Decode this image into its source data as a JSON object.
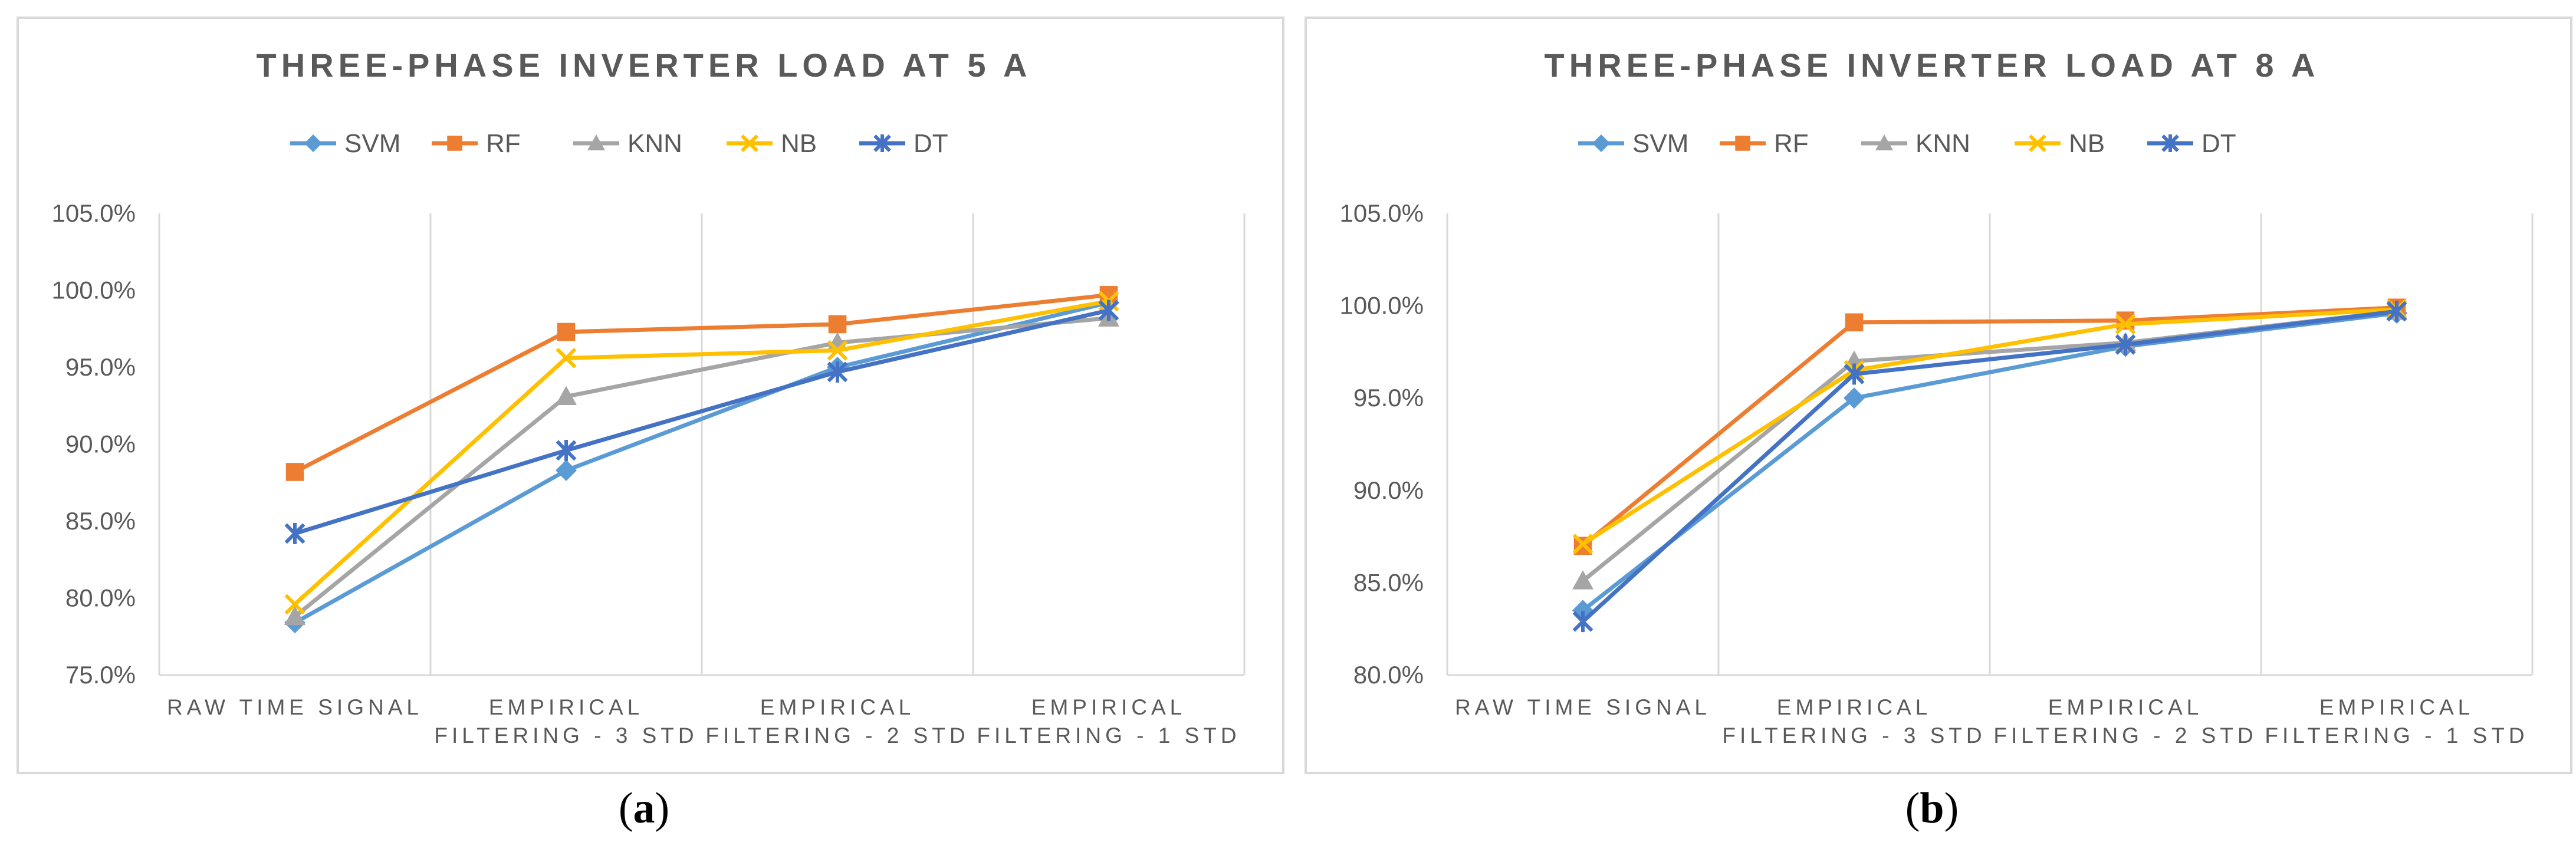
{
  "colors": {
    "SVM": "#5b9bd5",
    "RF": "#ed7d31",
    "KNN": "#a5a5a5",
    "NB": "#ffc000",
    "DT": "#4472c4",
    "grid": "#d9d9d9",
    "text": "#595959"
  },
  "legend_markers": {
    "SVM": "diamond",
    "RF": "square",
    "KNN": "triangle",
    "NB": "x",
    "DT": "star"
  },
  "chart_data": [
    {
      "type": "line",
      "title": "THREE-PHASE INVERTER LOAD AT 5 A",
      "caption_letter": "a",
      "legend_position": "top",
      "categories": [
        [
          "RAW TIME SIGNAL"
        ],
        [
          "EMPIRICAL",
          "FILTERING - 3 STD"
        ],
        [
          "EMPIRICAL",
          "FILTERING - 2 STD"
        ],
        [
          "EMPIRICAL",
          "FILTERING - 1 STD"
        ]
      ],
      "ylim": [
        75.0,
        105.0
      ],
      "yticks": [
        "75.0%",
        "80.0%",
        "85.0%",
        "90.0%",
        "95.0%",
        "100.0%",
        "105.0%"
      ],
      "series": [
        {
          "name": "SVM",
          "values": [
            78.4,
            88.3,
            95.0,
            99.2
          ]
        },
        {
          "name": "RF",
          "values": [
            88.2,
            97.3,
            97.8,
            99.7
          ]
        },
        {
          "name": "KNN",
          "values": [
            78.8,
            93.1,
            96.6,
            98.2
          ]
        },
        {
          "name": "NB",
          "values": [
            79.6,
            95.6,
            96.1,
            99.3
          ]
        },
        {
          "name": "DT",
          "values": [
            84.2,
            89.6,
            94.7,
            98.7
          ]
        }
      ]
    },
    {
      "type": "line",
      "title": "THREE-PHASE INVERTER LOAD AT 8 A",
      "caption_letter": "b",
      "legend_position": "top",
      "categories": [
        [
          "RAW TIME SIGNAL"
        ],
        [
          "EMPIRICAL",
          "FILTERING - 3 STD"
        ],
        [
          "EMPIRICAL",
          "FILTERING - 2 STD"
        ],
        [
          "EMPIRICAL",
          "FILTERING - 1 STD"
        ]
      ],
      "ylim": [
        80.0,
        105.0
      ],
      "yticks": [
        "80.0%",
        "85.0%",
        "90.0%",
        "95.0%",
        "100.0%",
        "105.0%"
      ],
      "series": [
        {
          "name": "SVM",
          "values": [
            83.5,
            95.0,
            97.8,
            99.6
          ]
        },
        {
          "name": "RF",
          "values": [
            87.0,
            99.1,
            99.2,
            99.9
          ]
        },
        {
          "name": "KNN",
          "values": [
            85.1,
            97.0,
            98.0,
            99.7
          ]
        },
        {
          "name": "NB",
          "values": [
            87.1,
            96.5,
            99.0,
            99.8
          ]
        },
        {
          "name": "DT",
          "values": [
            82.9,
            96.3,
            97.9,
            99.7
          ]
        }
      ]
    }
  ]
}
